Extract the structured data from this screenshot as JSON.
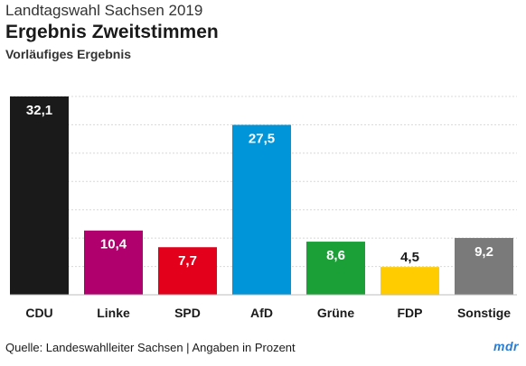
{
  "header": {
    "kicker": "Landtagswahl Sachsen 2019",
    "title": "Ergebnis Zweitstimmen",
    "subtitle": "Vorläufiges Ergebnis"
  },
  "footer": {
    "source": "Quelle: Landeswahlleiter Sachsen | Angaben in Prozent",
    "logo": "mdr"
  },
  "chart_data": {
    "type": "bar",
    "categories": [
      "CDU",
      "Linke",
      "SPD",
      "AfD",
      "Grüne",
      "FDP",
      "Sonstige"
    ],
    "values": [
      32.1,
      10.4,
      7.7,
      27.5,
      8.6,
      4.5,
      9.2
    ],
    "value_labels": [
      "32,1",
      "10,4",
      "7,7",
      "27,5",
      "8,6",
      "4,5",
      "9,2"
    ],
    "colors": [
      "#1a1a1a",
      "#b0006e",
      "#e2001a",
      "#0095d9",
      "#1aa037",
      "#ffcc00",
      "#7a7a7a"
    ],
    "ylim": [
      0,
      32.1
    ],
    "grid": true,
    "grid_color": "#d8d8d8",
    "grid_steps": 7,
    "title": "Ergebnis Zweitstimmen",
    "xlabel": "",
    "ylabel": ""
  }
}
